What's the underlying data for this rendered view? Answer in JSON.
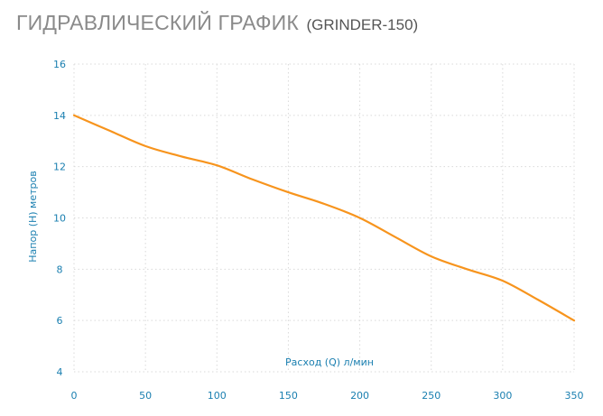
{
  "header": {
    "title": "ГИДРАВЛИЧЕСКИЙ ГРАФИК",
    "subtitle": "(GRINDER-150)"
  },
  "colors": {
    "curve": "#f7941d",
    "axis_text": "#1a7fb0",
    "grid": "#d9d9d9",
    "title": "#8a8a8a"
  },
  "chart_data": {
    "type": "line",
    "title": "ГИДРАВЛИЧЕСКИЙ ГРАФИК (GRINDER-150)",
    "xlabel": "Расход (Q) л/мин",
    "ylabel": "Напор (H) метров",
    "xlim": [
      0,
      350
    ],
    "ylim": [
      4,
      16
    ],
    "x_ticks": [
      0,
      50,
      100,
      150,
      200,
      250,
      300,
      350
    ],
    "y_ticks": [
      4,
      6,
      8,
      10,
      12,
      14,
      16
    ],
    "grid": true,
    "series": [
      {
        "x": [
          0,
          25,
          50,
          75,
          100,
          125,
          150,
          175,
          200,
          225,
          250,
          275,
          300,
          325,
          350
        ],
        "values": [
          14,
          13.4,
          12.8,
          12.4,
          12.05,
          11.5,
          11.0,
          10.55,
          10.0,
          9.25,
          8.5,
          8.0,
          7.55,
          6.8,
          6.0
        ]
      }
    ]
  }
}
